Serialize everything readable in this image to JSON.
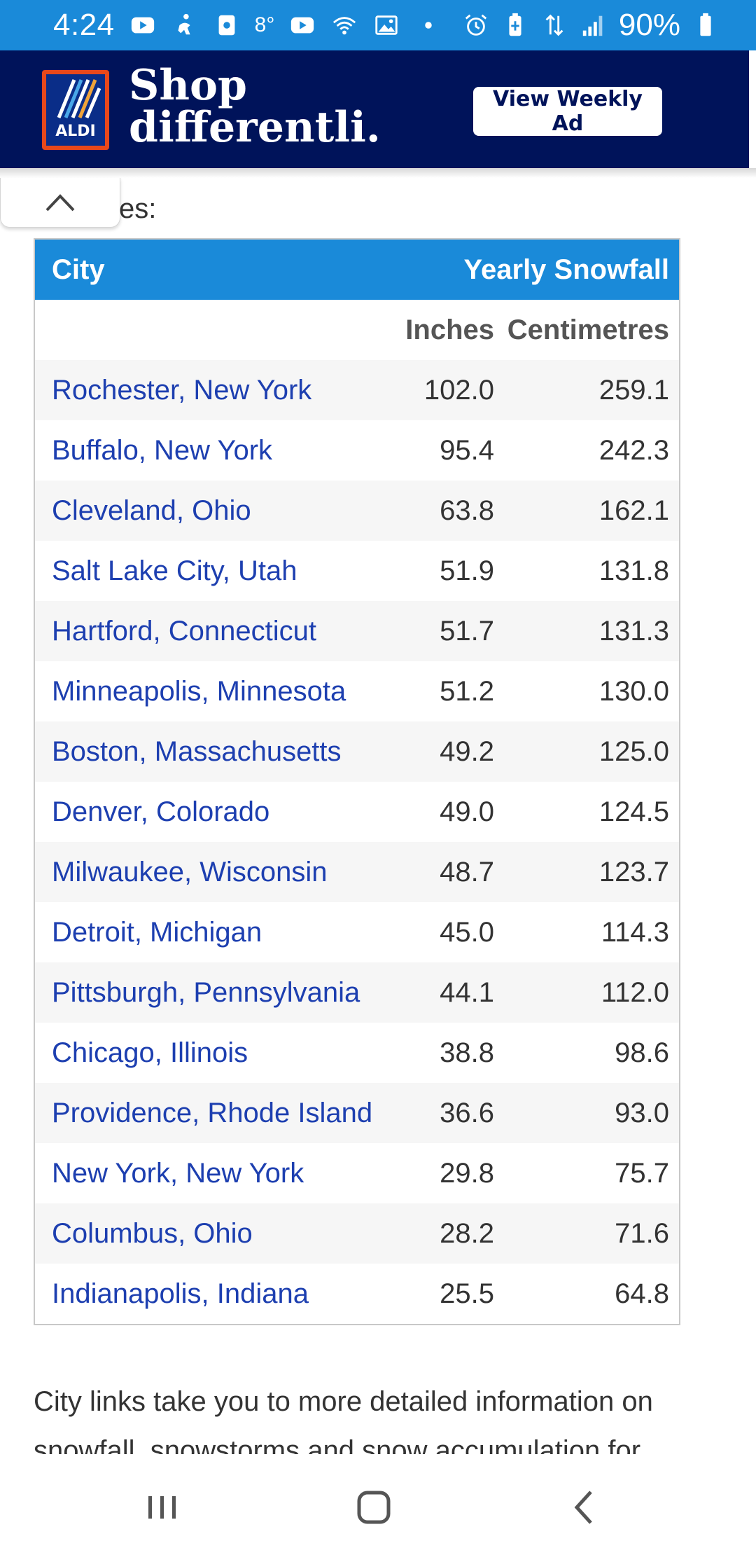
{
  "status_bar": {
    "time": "4:24",
    "temperature": "8°",
    "battery": "90%",
    "left_icons": [
      "youtube-icon",
      "accessibility-icon",
      "screen-icon",
      "youtube-icon",
      "wifi-icon",
      "image-icon",
      "dot-icon"
    ],
    "right_icons": [
      "alarm-icon",
      "battery-saver-icon",
      "data-icon",
      "signal-icon",
      "battery-icon"
    ]
  },
  "ad": {
    "brand": "ALDI",
    "tagline_line1": "Shop",
    "tagline_line2": "differentli.",
    "button": "View Weekly Ad",
    "colors": {
      "background": "#00135a",
      "logo_border": "#e8481b"
    }
  },
  "partial_text": "es:",
  "table": {
    "header": {
      "city": "City",
      "snowfall": "Yearly Snowfall"
    },
    "units": {
      "inches": "Inches",
      "cm": "Centimetres"
    },
    "rows": [
      {
        "city": "Rochester, New York",
        "inches": "102.0",
        "cm": "259.1"
      },
      {
        "city": "Buffalo, New York",
        "inches": "95.4",
        "cm": "242.3"
      },
      {
        "city": "Cleveland, Ohio",
        "inches": "63.8",
        "cm": "162.1"
      },
      {
        "city": "Salt Lake City, Utah",
        "inches": "51.9",
        "cm": "131.8"
      },
      {
        "city": "Hartford, Connecticut",
        "inches": "51.7",
        "cm": "131.3"
      },
      {
        "city": "Minneapolis, Minnesota",
        "inches": "51.2",
        "cm": "130.0"
      },
      {
        "city": "Boston, Massachusetts",
        "inches": "49.2",
        "cm": "125.0"
      },
      {
        "city": "Denver, Colorado",
        "inches": "49.0",
        "cm": "124.5"
      },
      {
        "city": "Milwaukee, Wisconsin",
        "inches": "48.7",
        "cm": "123.7"
      },
      {
        "city": "Detroit, Michigan",
        "inches": "45.0",
        "cm": "114.3"
      },
      {
        "city": "Pittsburgh, Pennsylvania",
        "inches": "44.1",
        "cm": "112.0"
      },
      {
        "city": "Chicago, Illinois",
        "inches": "38.8",
        "cm": "98.6"
      },
      {
        "city": "Providence, Rhode Island",
        "inches": "36.6",
        "cm": "93.0"
      },
      {
        "city": "New York, New York",
        "inches": "29.8",
        "cm": "75.7"
      },
      {
        "city": "Columbus, Ohio",
        "inches": "28.2",
        "cm": "71.6"
      },
      {
        "city": "Indianapolis, Indiana",
        "inches": "25.5",
        "cm": "64.8"
      }
    ],
    "colors": {
      "header": "#1a8ad9",
      "link": "#1d3fb0"
    }
  },
  "footnote": "City links take you to more detailed information on snowfall, snowstorms and snow accumulation for",
  "nav": {
    "recents": "recents-icon",
    "home": "home-icon",
    "back": "back-icon"
  }
}
